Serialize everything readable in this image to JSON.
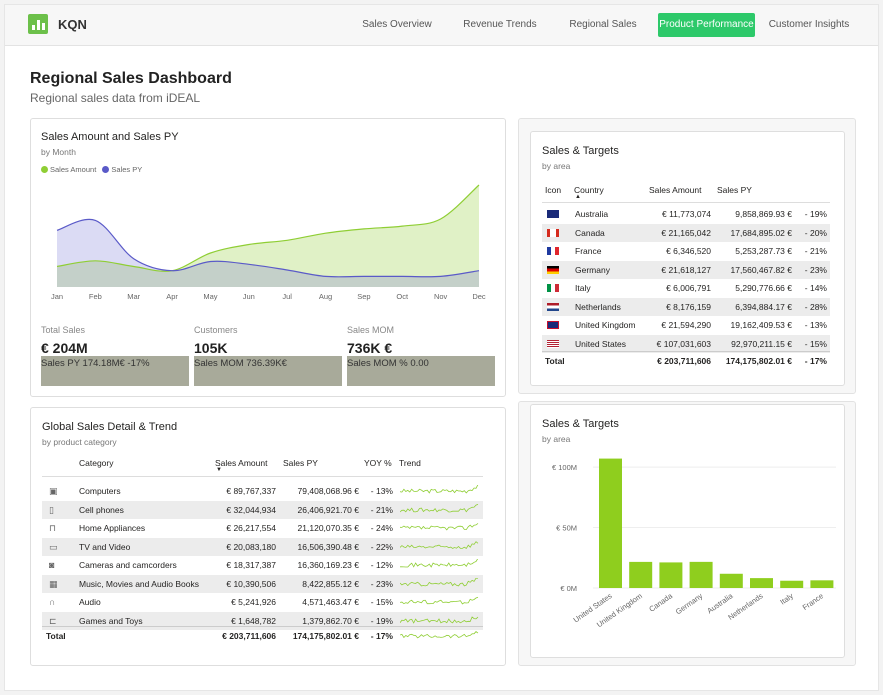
{
  "brand": "KQN",
  "nav": [
    {
      "label": "Sales Overview",
      "active": false
    },
    {
      "label": "Revenue Trends",
      "active": false
    },
    {
      "label": "Regional Sales",
      "active": false
    },
    {
      "label": "Product Performance",
      "active": true
    },
    {
      "label": "Customer Insights",
      "active": false
    }
  ],
  "page": {
    "title": "Regional Sales Dashboard",
    "subtitle": "Regional sales data from iDEAL"
  },
  "area_chart": {
    "title": "Sales Amount and Sales PY",
    "subtitle": "by Month",
    "legend": [
      {
        "name": "Sales Amount",
        "color": "#8fce34"
      },
      {
        "name": "Sales PY",
        "color": "#5a5ac8"
      }
    ],
    "chart_data": {
      "type": "area",
      "title": "Sales Amount and Sales PY",
      "categories": [
        "Jan",
        "Feb",
        "Mar",
        "Apr",
        "May",
        "Jun",
        "Jul",
        "Aug",
        "Sep",
        "Oct",
        "Nov",
        "Dec"
      ],
      "series": [
        {
          "name": "Sales Amount",
          "color": "#8fce34",
          "values": [
            14.5,
            18.5,
            14.5,
            11.5,
            24,
            30,
            33,
            38,
            41,
            43,
            48,
            72
          ]
        },
        {
          "name": "Sales PY",
          "color": "#5a5ac8",
          "values": [
            40,
            47,
            20,
            11.5,
            18,
            16,
            12,
            7.5,
            7.5,
            7.5,
            7.5,
            11.5
          ]
        }
      ]
    }
  },
  "kpis": [
    {
      "label": "Total Sales",
      "value": "€ 204M",
      "box": "Sales PY 174.18M€ ‑17%"
    },
    {
      "label": "Customers",
      "value": "105K",
      "box": "Sales MOM 736.39K€"
    },
    {
      "label": "Sales MOM",
      "value": "736K €",
      "box": "Sales MOM % 0.00"
    }
  ],
  "global_table": {
    "title": "Global Sales Detail & Trend",
    "subtitle": "by product category",
    "headers": {
      "category": "Category",
      "amount": "Sales Amount",
      "py": "Sales PY",
      "yoy": "YOY %",
      "trend": "Trend"
    },
    "rows": [
      {
        "icon": "computer-icon",
        "category": "Computers",
        "amount": "€ 89,767,337",
        "py": "79,408,068.96 €",
        "yoy": "‑ 13%"
      },
      {
        "icon": "phone-icon",
        "category": "Cell phones",
        "amount": "€ 32,044,934",
        "py": "26,406,921.70 €",
        "yoy": "‑ 21%"
      },
      {
        "icon": "appliance-icon",
        "category": "Home Appliances",
        "amount": "€ 26,217,554",
        "py": "21,120,070.35 €",
        "yoy": "‑ 24%"
      },
      {
        "icon": "tv-icon",
        "category": "TV and Video",
        "amount": "€ 20,083,180",
        "py": "16,506,390.48 €",
        "yoy": "‑ 22%"
      },
      {
        "icon": "camera-icon",
        "category": "Cameras and camcorders",
        "amount": "€ 18,317,387",
        "py": "16,360,169.23 €",
        "yoy": "‑ 12%"
      },
      {
        "icon": "film-icon",
        "category": "Music, Movies and Audio Books",
        "amount": "€ 10,390,506",
        "py": "8,422,855.12 €",
        "yoy": "‑ 23%"
      },
      {
        "icon": "headphones-icon",
        "category": "Audio",
        "amount": "€ 5,241,926",
        "py": "4,571,463.47 €",
        "yoy": "‑ 15%"
      },
      {
        "icon": "gamepad-icon",
        "category": "Games and Toys",
        "amount": "€ 1,648,782",
        "py": "1,379,862.70 €",
        "yoy": "‑ 19%"
      }
    ],
    "total": {
      "label": "Total",
      "amount": "€ 203,711,606",
      "py": "174,175,802.01 €",
      "yoy": "‑ 17%"
    }
  },
  "targets_table": {
    "title": "Sales & Targets",
    "subtitle": "by area",
    "headers": {
      "icon": "Icon",
      "country": "Country",
      "amount": "Sales Amount",
      "py": "Sales PY"
    },
    "rows": [
      {
        "flag": "australia-flag-icon",
        "country": "Australia",
        "amount": "€ 11,773,074",
        "py": "9,858,869.93 €",
        "pct": "‑ 19%"
      },
      {
        "flag": "canada-flag-icon",
        "country": "Canada",
        "amount": "€ 21,165,042",
        "py": "17,684,895.02 €",
        "pct": "‑ 20%"
      },
      {
        "flag": "france-flag-icon",
        "country": "France",
        "amount": "€ 6,346,520",
        "py": "5,253,287.73 €",
        "pct": "‑ 21%"
      },
      {
        "flag": "germany-flag-icon",
        "country": "Germany",
        "amount": "€ 21,618,127",
        "py": "17,560,467.82 €",
        "pct": "‑ 23%"
      },
      {
        "flag": "italy-flag-icon",
        "country": "Italy",
        "amount": "€ 6,006,791",
        "py": "5,290,776.66 €",
        "pct": "‑ 14%"
      },
      {
        "flag": "netherlands-flag-icon",
        "country": "Netherlands",
        "amount": "€ 8,176,159",
        "py": "6,394,884.17 €",
        "pct": "‑ 28%"
      },
      {
        "flag": "uk-flag-icon",
        "country": "United Kingdom",
        "amount": "€ 21,594,290",
        "py": "19,162,409.53 €",
        "pct": "‑ 13%"
      },
      {
        "flag": "usa-flag-icon",
        "country": "United States",
        "amount": "€ 107,031,603",
        "py": "92,970,211.15 €",
        "pct": "‑ 15%"
      }
    ],
    "total": {
      "label": "Total",
      "amount": "€ 203,711,606",
      "py": "174,175,802.01 €",
      "pct": "‑ 17%"
    }
  },
  "bar_chart": {
    "title": "Sales & Targets",
    "subtitle": "by area",
    "color": "#8fce1e",
    "chart_data": {
      "type": "bar",
      "categories": [
        "United States",
        "United Kingdom",
        "Canada",
        "Germany",
        "Australia",
        "Netherlands",
        "Italy",
        "France"
      ],
      "values": [
        107031603,
        21594290,
        21165042,
        21618127,
        11773074,
        8176159,
        6006791,
        6346520
      ],
      "yticks": [
        "€ 0M",
        "€ 50M",
        "€ 100M"
      ],
      "ylim": [
        0,
        110000000
      ]
    }
  }
}
